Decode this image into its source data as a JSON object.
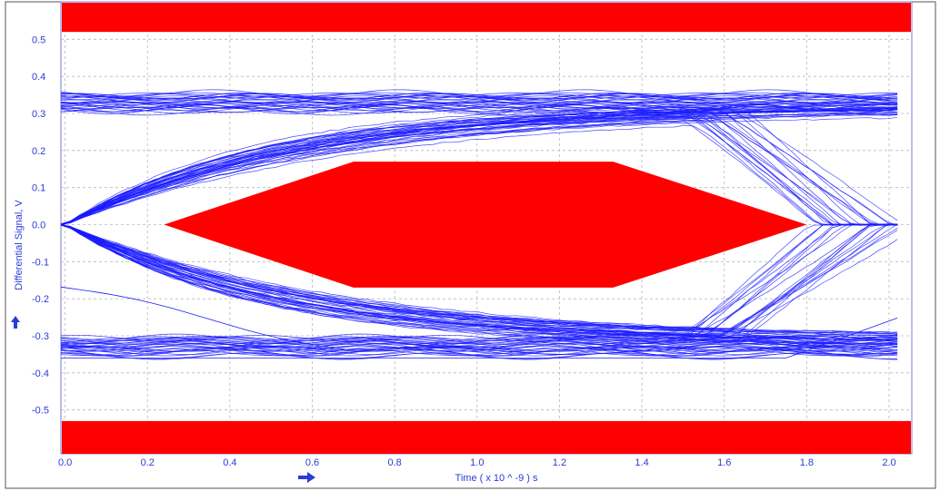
{
  "chart_data": {
    "type": "line",
    "title": "",
    "xlabel": "Time  ( x 10 ^ -9 ) s",
    "ylabel": "Differential Signal, V",
    "xlim": [
      0.0,
      2.05
    ],
    "ylim": [
      -0.6,
      0.55
    ],
    "x_ticks": [
      "0.0",
      "0.2",
      "0.4",
      "0.6",
      "0.8",
      "1.0",
      "1.2",
      "1.4",
      "1.6",
      "1.8",
      "2.0"
    ],
    "x_tick_values": [
      0.0,
      0.2,
      0.4,
      0.6,
      0.8,
      1.0,
      1.2,
      1.4,
      1.6,
      1.8,
      2.0
    ],
    "y_ticks": [
      "0.5",
      "0.4",
      "0.3",
      "0.2",
      "0.1",
      "0.0",
      "-0.1",
      "-0.2",
      "-0.3",
      "-0.4",
      "-0.5"
    ],
    "y_tick_values": [
      0.5,
      0.4,
      0.3,
      0.2,
      0.1,
      0.0,
      -0.1,
      -0.2,
      -0.3,
      -0.4,
      -0.5
    ],
    "grid": true,
    "legend": "none",
    "eye_traces": {
      "high_level": 0.33,
      "low_level": -0.33,
      "crossing_times": [
        0.0,
        2.0
      ],
      "color": "#1a1aff"
    },
    "mask": {
      "color": "#ff0000",
      "top_band_ymin": 0.52,
      "bottom_band_ymax": -0.53,
      "hexagon": [
        [
          0.24,
          0.0
        ],
        [
          0.7,
          0.17
        ],
        [
          1.33,
          0.17
        ],
        [
          1.8,
          0.0
        ],
        [
          1.33,
          -0.17
        ],
        [
          0.7,
          -0.17
        ]
      ]
    }
  }
}
